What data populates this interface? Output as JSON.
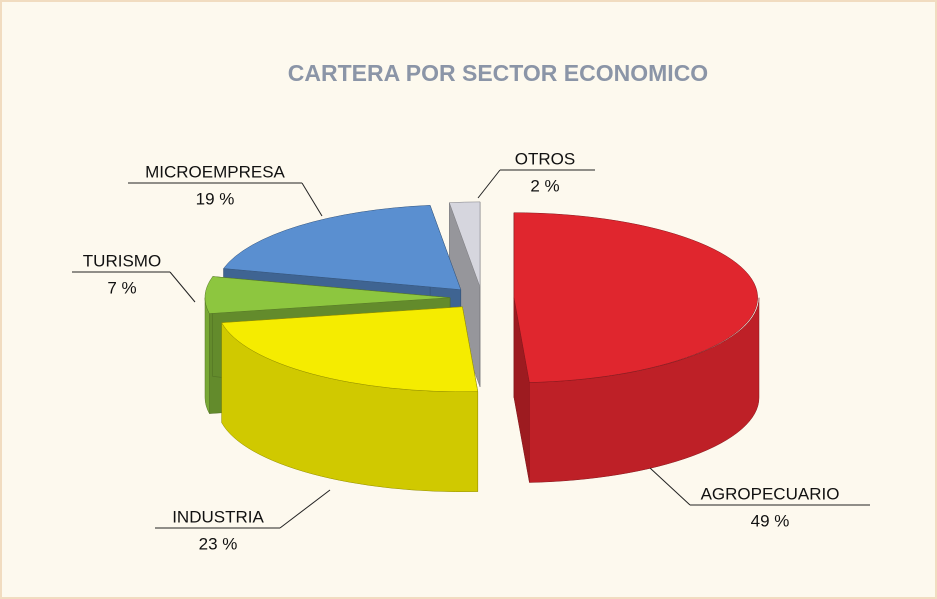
{
  "chart_data": {
    "type": "pie",
    "title": "CARTERA POR SECTOR ECONOMICO",
    "categories": [
      "AGROPECUARIO",
      "INDUSTRIA",
      "TURISMO",
      "MICROEMPRESA",
      "OTROS"
    ],
    "values": [
      49,
      23,
      7,
      19,
      2
    ],
    "value_labels": [
      "49 %",
      "23 %",
      "7 %",
      "19 %",
      "2 %"
    ],
    "colors": [
      "#e0262e",
      "#f5ec00",
      "#8dc63f",
      "#5a8fd0",
      "#d6d6de"
    ]
  }
}
